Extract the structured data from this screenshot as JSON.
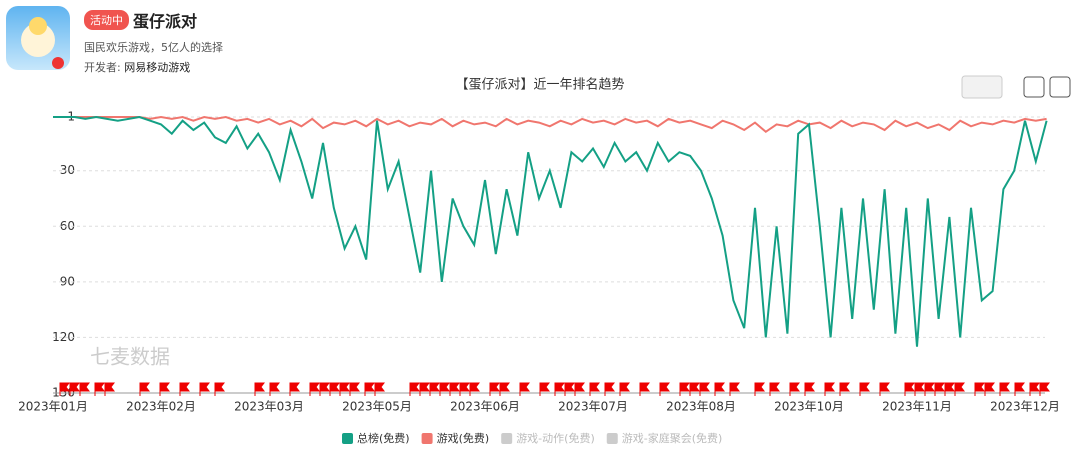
{
  "header": {
    "badge": "活动中",
    "title": "蛋仔派对",
    "subtitle": "国民欢乐游戏，5亿人的选择",
    "developer_label": "开发者:",
    "developer": "网易移动游戏"
  },
  "chart_data": {
    "type": "line",
    "title": "【蛋仔派对】近一年排名趋势",
    "watermark": "七麦数据",
    "categories": [
      "2023年01月",
      null,
      null,
      null,
      null,
      null,
      null,
      null,
      null,
      null,
      "2023年02月",
      null,
      null,
      null,
      null,
      null,
      null,
      null,
      null,
      null,
      "2023年03月",
      null,
      null,
      null,
      null,
      null,
      null,
      null,
      null,
      null,
      "2023年05月",
      null,
      null,
      null,
      null,
      null,
      null,
      null,
      null,
      null,
      "2023年06月",
      null,
      null,
      null,
      null,
      null,
      null,
      null,
      null,
      null,
      "2023年07月",
      null,
      null,
      null,
      null,
      null,
      null,
      null,
      null,
      null,
      "2023年08月",
      null,
      null,
      null,
      null,
      null,
      null,
      null,
      null,
      null,
      "2023年10月",
      null,
      null,
      null,
      null,
      null,
      null,
      null,
      null,
      null,
      "2023年11月",
      null,
      null,
      null,
      null,
      null,
      null,
      null,
      null,
      null,
      "2023年12月",
      null,
      null
    ],
    "series": [
      {
        "name": "总榜(免费)",
        "color": "#14a085",
        "values": [
          1,
          1,
          1,
          2,
          1,
          2,
          3,
          2,
          1,
          3,
          5,
          10,
          3,
          8,
          4,
          12,
          15,
          6,
          18,
          10,
          20,
          35,
          8,
          25,
          45,
          15,
          50,
          72,
          60,
          78,
          3,
          40,
          25,
          55,
          85,
          30,
          90,
          45,
          60,
          70,
          35,
          75,
          40,
          65,
          20,
          45,
          30,
          50,
          20,
          25,
          18,
          28,
          15,
          25,
          20,
          30,
          15,
          25,
          20,
          22,
          30,
          45,
          65,
          100,
          115,
          50,
          120,
          60,
          118,
          10,
          5,
          60,
          120,
          50,
          110,
          45,
          105,
          40,
          118,
          50,
          125,
          45,
          110,
          55,
          120,
          50,
          100,
          95,
          40,
          30,
          3,
          25,
          3
        ]
      },
      {
        "name": "游戏(免费)",
        "color": "#f0766e",
        "values": [
          1,
          1,
          1,
          1,
          1,
          1,
          1,
          1,
          1,
          2,
          1,
          2,
          1,
          3,
          1,
          2,
          1,
          3,
          2,
          4,
          2,
          5,
          3,
          6,
          2,
          7,
          4,
          5,
          3,
          6,
          2,
          5,
          3,
          6,
          4,
          5,
          2,
          6,
          3,
          5,
          4,
          6,
          2,
          5,
          3,
          4,
          6,
          3,
          5,
          2,
          4,
          3,
          5,
          2,
          4,
          3,
          6,
          2,
          4,
          3,
          5,
          7,
          3,
          5,
          8,
          4,
          9,
          5,
          6,
          3,
          5,
          4,
          7,
          3,
          6,
          4,
          5,
          8,
          3,
          6,
          4,
          7,
          5,
          8,
          3,
          6,
          4,
          5,
          3,
          4,
          2,
          3,
          2
        ]
      }
    ],
    "inactive_series": [
      "游戏-动作(免费)",
      "游戏-家庭聚会(免费)"
    ],
    "ylim": [
      150,
      1
    ],
    "yticks": [
      1,
      30,
      60,
      90,
      120,
      150
    ],
    "grid": true
  }
}
